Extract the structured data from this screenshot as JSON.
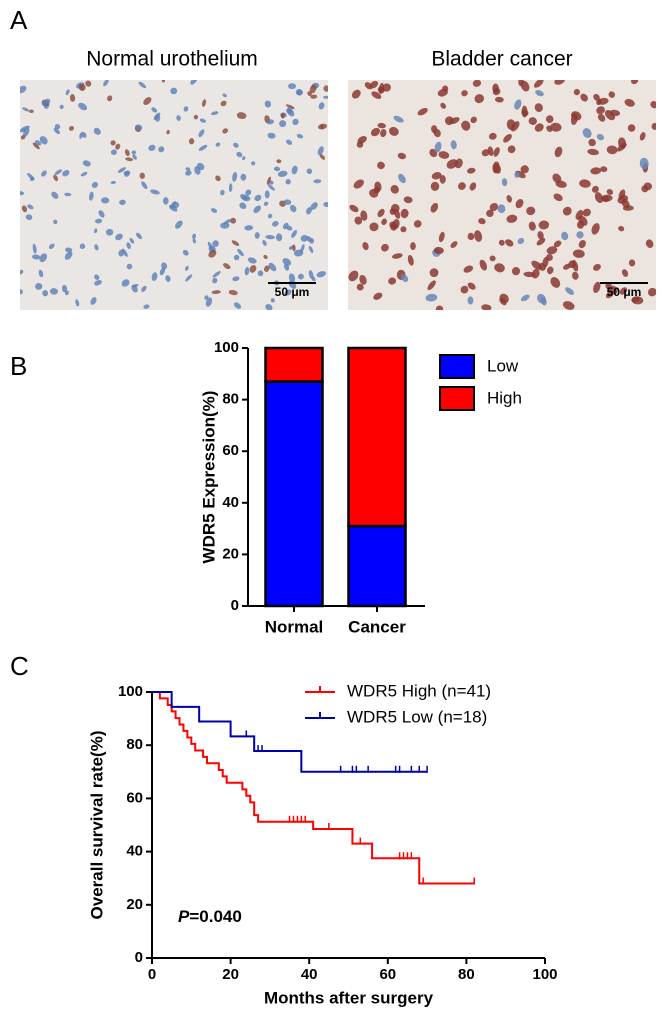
{
  "panel_a": {
    "label": "A",
    "images": [
      {
        "title": "Normal urothelium",
        "scale_bar": "50 μm"
      },
      {
        "title": "Bladder cancer",
        "scale_bar": "50 μm"
      }
    ]
  },
  "chart_data": [
    {
      "type": "stacked_bar",
      "panel_label": "B",
      "ylabel": "WDR5 Expression(%)",
      "categories": [
        "Normal",
        "Cancer"
      ],
      "series": [
        {
          "name": "Low",
          "color": "#0000ff",
          "values": [
            87,
            31
          ]
        },
        {
          "name": "High",
          "color": "#ff0000",
          "values": [
            13,
            69
          ]
        }
      ],
      "ylim": [
        0,
        100
      ],
      "yticks": [
        0,
        20,
        40,
        60,
        80,
        100
      ]
    },
    {
      "type": "survival",
      "panel_label": "C",
      "xlabel": "Months after surgery",
      "ylabel": "Overall survival rate(%)",
      "series": [
        {
          "name": "WDR5 High (n=41)",
          "color": "#ff0000",
          "x": [
            0,
            2,
            4,
            5,
            6,
            7,
            8,
            9,
            10,
            11,
            13,
            14,
            17,
            18,
            19,
            23,
            24,
            25,
            26,
            27,
            41,
            51,
            56,
            68,
            82
          ],
          "values": [
            100,
            97.6,
            95.1,
            92.7,
            90.2,
            87.8,
            85.4,
            82.9,
            80.5,
            78,
            75.6,
            73.2,
            70.7,
            68.3,
            65.9,
            63.4,
            61,
            58.5,
            53.7,
            51.2,
            48.5,
            43,
            37.5,
            28,
            28
          ],
          "censored_x": [
            35,
            36,
            37,
            38,
            39,
            45,
            53,
            63,
            64,
            65,
            66,
            69,
            82
          ]
        },
        {
          "name": "WDR5 Low  (n=18)",
          "color": "#0000aa",
          "x": [
            0,
            5,
            12,
            20,
            26,
            38,
            70
          ],
          "values": [
            100,
            94.4,
            88.9,
            83.3,
            77.8,
            70,
            70
          ],
          "censored_x": [
            24,
            27,
            28,
            48,
            51,
            52,
            55,
            62,
            63,
            66,
            68,
            70
          ]
        }
      ],
      "xlim": [
        0,
        100
      ],
      "xticks": [
        0,
        20,
        40,
        60,
        80,
        100
      ],
      "ylim": [
        0,
        100
      ],
      "yticks": [
        0,
        20,
        40,
        60,
        80,
        100
      ],
      "annotation": {
        "italic": "P",
        "text": "=0.040"
      }
    }
  ]
}
